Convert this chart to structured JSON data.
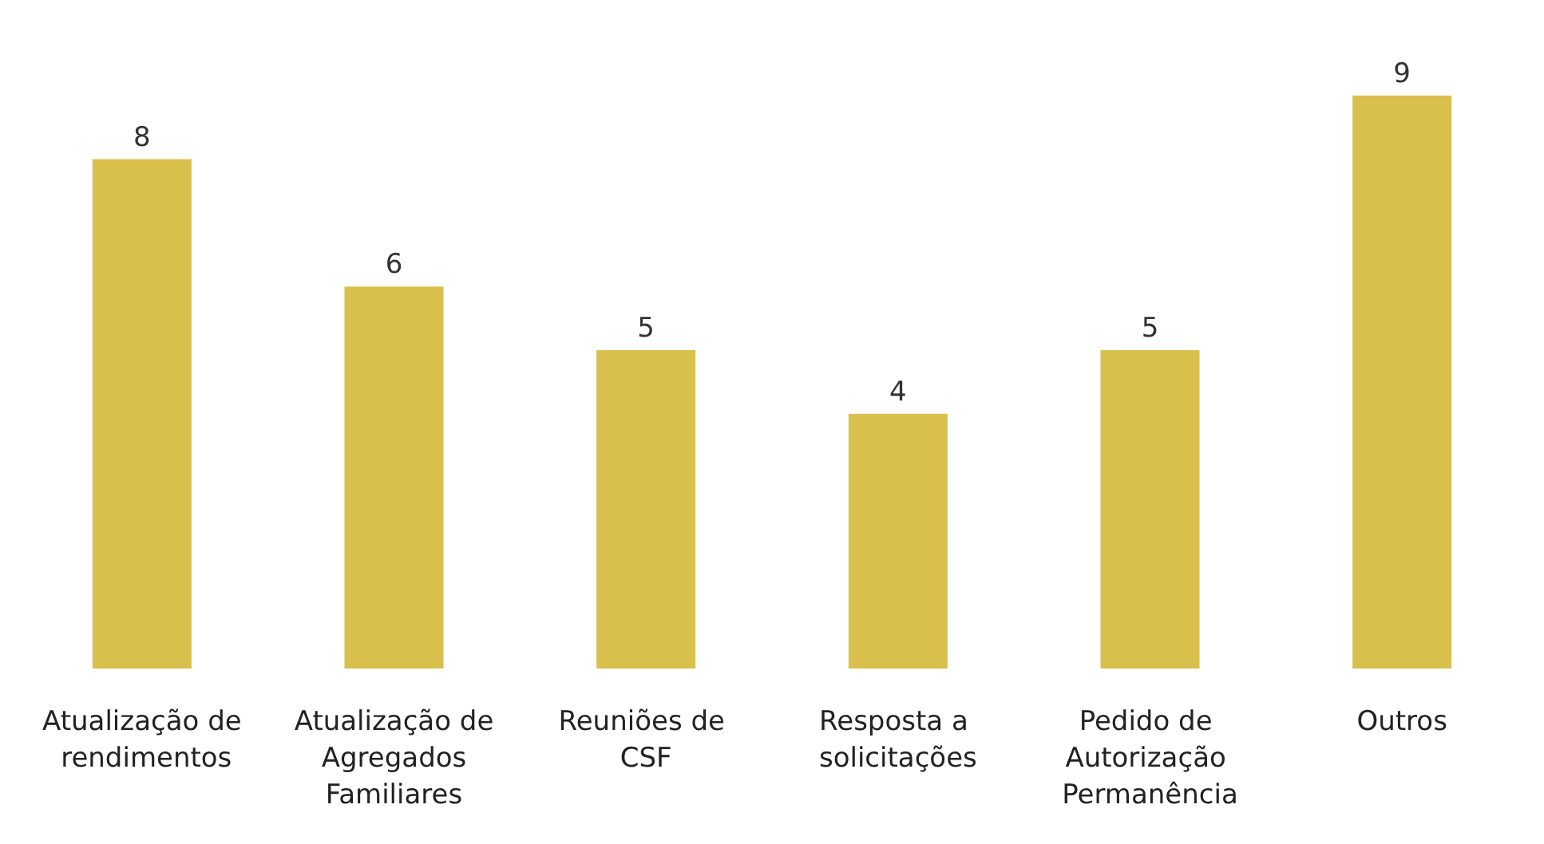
{
  "chart_data": {
    "type": "bar",
    "categories": [
      "Atualização de rendimentos",
      "Atualização de Agregados Familiares",
      "Reuniões de CSF",
      "Resposta a solicitações",
      "Pedido de Autorização Permanência",
      "Outros"
    ],
    "values": [
      8,
      6,
      5,
      4,
      5,
      9
    ],
    "color": "#d9bf4c",
    "data_labels": true,
    "tick_labels": "x"
  }
}
